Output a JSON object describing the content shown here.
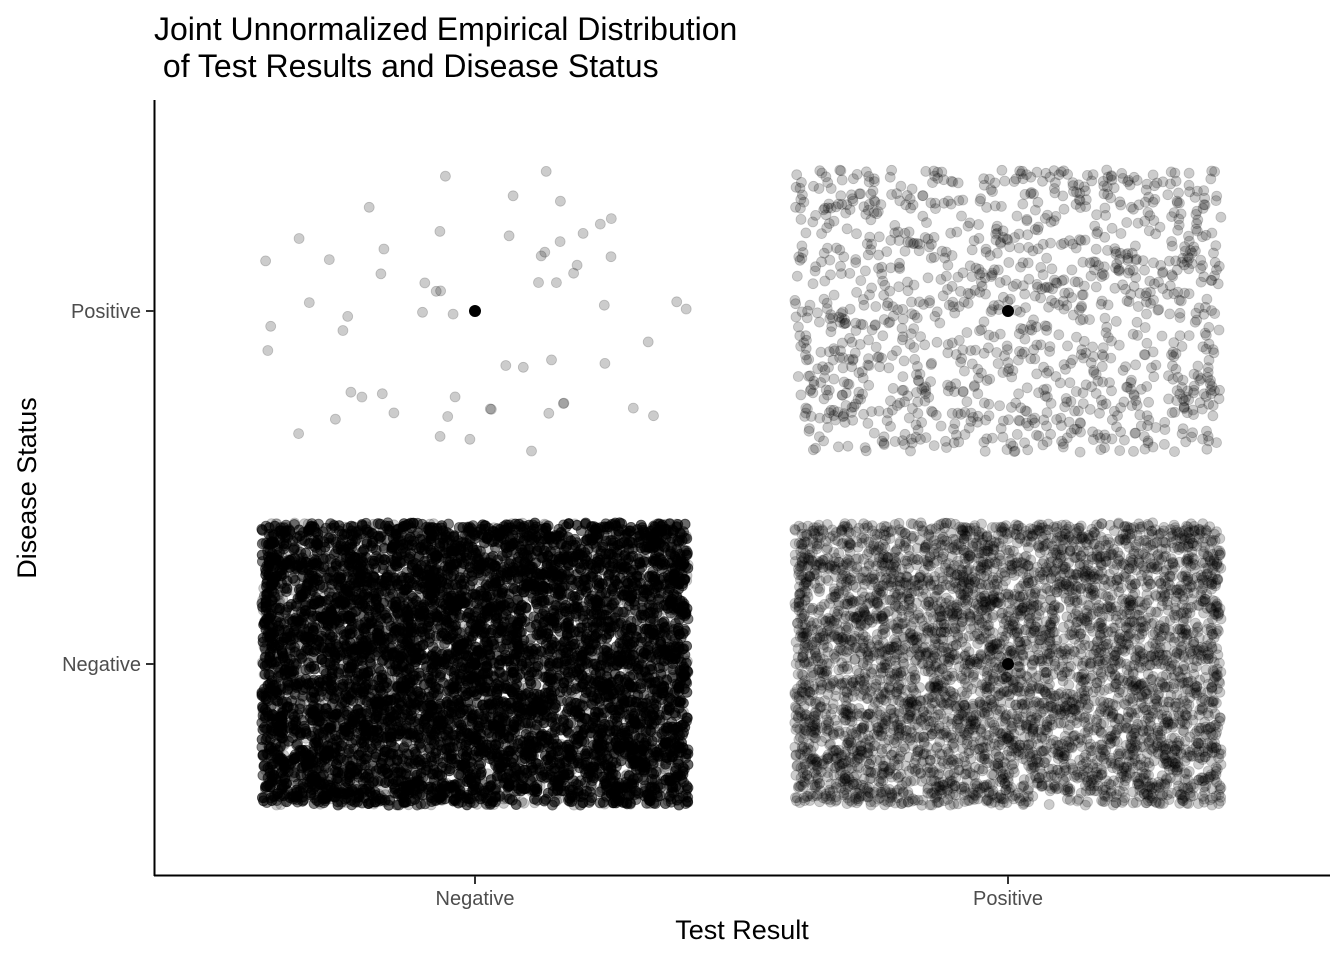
{
  "chart_data": {
    "type": "scatter",
    "title_lines": [
      "Joint Unnormalized Empirical Distribution",
      " of Test Results and Disease Status"
    ],
    "xlabel": "Test Result",
    "ylabel": "Disease Status",
    "x_categories": [
      "Negative",
      "Positive"
    ],
    "y_categories": [
      "Negative",
      "Positive"
    ],
    "point_color": "#000000",
    "point_opacity": 0.2,
    "jitter": 0.4,
    "grid": false,
    "legend": "none",
    "cells": [
      {
        "x": "Negative",
        "y": "Positive",
        "count": 59
      },
      {
        "x": "Positive",
        "y": "Positive",
        "count": 1200
      },
      {
        "x": "Negative",
        "y": "Negative",
        "count": 20000
      },
      {
        "x": "Positive",
        "y": "Negative",
        "count": 4800
      }
    ],
    "center_points": [
      {
        "x": "Negative",
        "y": "Positive"
      },
      {
        "x": "Positive",
        "y": "Positive"
      },
      {
        "x": "Negative",
        "y": "Negative"
      },
      {
        "x": "Positive",
        "y": "Negative"
      }
    ]
  }
}
